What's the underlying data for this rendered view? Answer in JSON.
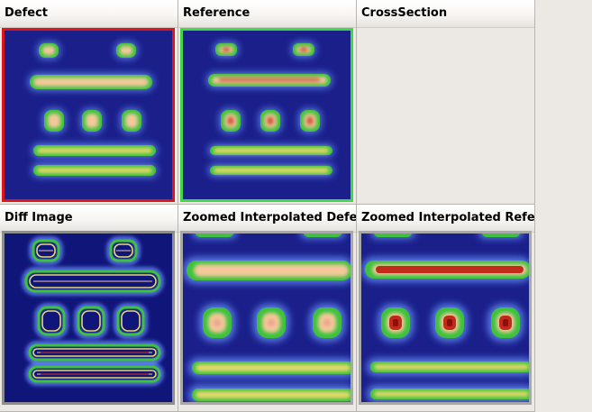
{
  "panels": {
    "defect": {
      "title": "Defect",
      "border_color": "#d8161c"
    },
    "reference": {
      "title": "Reference",
      "border_color": "#3fd64a"
    },
    "cross_section": {
      "title": "CrossSection"
    },
    "diff_image": {
      "title": "Diff Image",
      "border_color": "#8e8e8e"
    },
    "zoomed_defect": {
      "title": "Zoomed Interpolated Defect",
      "border_color": "#a8a8a8"
    },
    "zoomed_reference": {
      "title": "Zoomed Interpolated Reference",
      "border_color": "#a8a8a8"
    }
  },
  "colors": {
    "background_navy": "#1a1f8a",
    "halo_blue": "#5a7de8",
    "ring_green": "#3cc23c",
    "core_yellow": "#e8d86a",
    "core_peach": "#f4c89a",
    "hot_red": "#c22a1c"
  }
}
